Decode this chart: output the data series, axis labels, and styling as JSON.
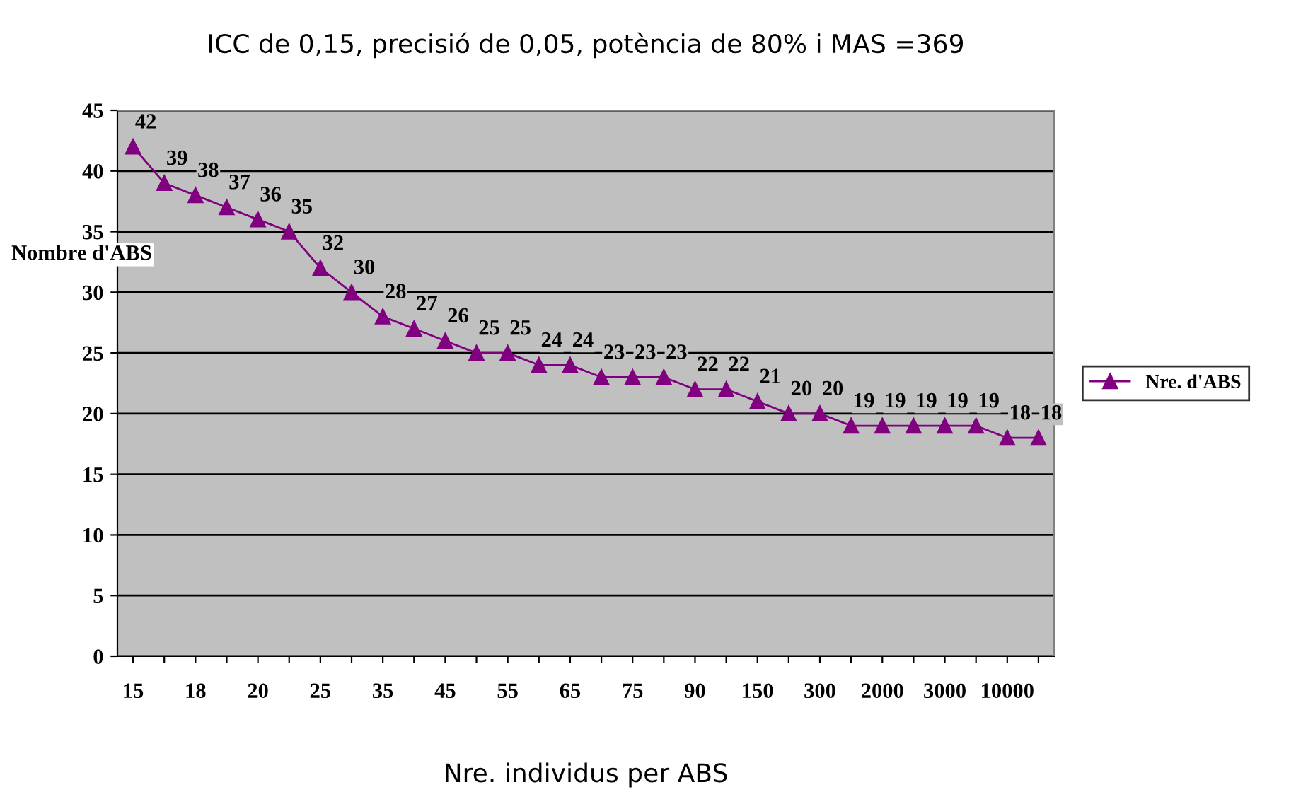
{
  "chart_data": {
    "type": "line",
    "title": "ICC de 0,15, precisió de 0,05, potència de 80% i MAS =369",
    "xlabel": "Nre. individus per ABS",
    "ylabel": "Nombre d'ABS",
    "categories": [
      "15",
      null,
      "18",
      null,
      "20",
      null,
      "25",
      null,
      "35",
      null,
      "45",
      null,
      "55",
      null,
      "65",
      null,
      "75",
      null,
      "90",
      null,
      "150",
      null,
      "300",
      null,
      "2000",
      null,
      "3000",
      null,
      "10000",
      null
    ],
    "series": [
      {
        "name": "Nre. d'ABS",
        "color": "#800080",
        "values": [
          42,
          39,
          38,
          37,
          36,
          35,
          32,
          30,
          28,
          27,
          26,
          25,
          25,
          24,
          24,
          23,
          23,
          23,
          22,
          22,
          21,
          20,
          20,
          19,
          19,
          19,
          19,
          19,
          18,
          18
        ]
      }
    ],
    "ylim": [
      0,
      45
    ],
    "yticks": [
      0,
      5,
      10,
      15,
      20,
      25,
      30,
      35,
      40,
      45
    ],
    "grid": "y",
    "legend": "right",
    "marker": "triangle",
    "line_style": "solid",
    "data_labels": true
  }
}
